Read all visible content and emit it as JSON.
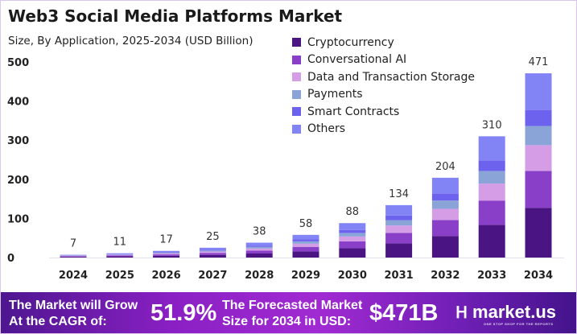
{
  "chart_data": {
    "type": "bar",
    "stacked": true,
    "title": "Web3 Social Media Platforms Market",
    "subtitle": "Size, By Application, 2025-2034 (USD Billion)",
    "xlabel": "",
    "ylabel": "",
    "ylim": [
      0,
      500
    ],
    "yticks": [
      0,
      100,
      200,
      300,
      400,
      500
    ],
    "grid": false,
    "legend_position": "top-center",
    "categories": [
      "2024",
      "2025",
      "2026",
      "2027",
      "2028",
      "2029",
      "2030",
      "2031",
      "2032",
      "2033",
      "2034"
    ],
    "totals": [
      7,
      11,
      17,
      25,
      38,
      58,
      88,
      134,
      204,
      310,
      471
    ],
    "series": [
      {
        "name": "Cryptocurrency",
        "color": "#4a1583",
        "values": [
          1.9,
          3.0,
          4.6,
          6.8,
          10.3,
          15.7,
          23.8,
          36.2,
          55.1,
          83.7,
          127.2
        ]
      },
      {
        "name": "Conversational AI",
        "color": "#8a3fc8",
        "values": [
          1.4,
          2.2,
          3.4,
          5.0,
          7.6,
          11.6,
          17.6,
          26.8,
          40.8,
          62.0,
          94.2
        ]
      },
      {
        "name": "Data and Transaction Storage",
        "color": "#d49de6",
        "values": [
          1.0,
          1.5,
          2.4,
          3.5,
          5.3,
          8.1,
          12.3,
          18.8,
          28.6,
          43.4,
          65.9
        ]
      },
      {
        "name": "Payments",
        "color": "#8aa4d8",
        "values": [
          0.7,
          1.1,
          1.8,
          2.6,
          4.0,
          6.0,
          9.2,
          13.9,
          21.2,
          32.2,
          49.0
        ]
      },
      {
        "name": "Smart Contracts",
        "color": "#6d62ee",
        "values": [
          0.6,
          1.0,
          1.5,
          2.2,
          3.3,
          5.0,
          7.7,
          11.7,
          17.7,
          27.0,
          41.0
        ]
      },
      {
        "name": "Others",
        "color": "#8284f5",
        "values": [
          1.4,
          2.2,
          3.3,
          4.9,
          7.5,
          11.6,
          17.4,
          26.6,
          40.6,
          61.7,
          93.7
        ]
      }
    ]
  },
  "banner": {
    "cagr_label_1": "The Market will Grow",
    "cagr_label_2": "At the CAGR of:",
    "cagr_value": "51.9%",
    "forecast_label_1": "The Forecasted Market",
    "forecast_label_2": "Size for 2034 in USD:",
    "forecast_value": "$471B",
    "logo_text": "market.us",
    "logo_tagline": "ONE STOP SHOP FOR THE REPORTS"
  }
}
